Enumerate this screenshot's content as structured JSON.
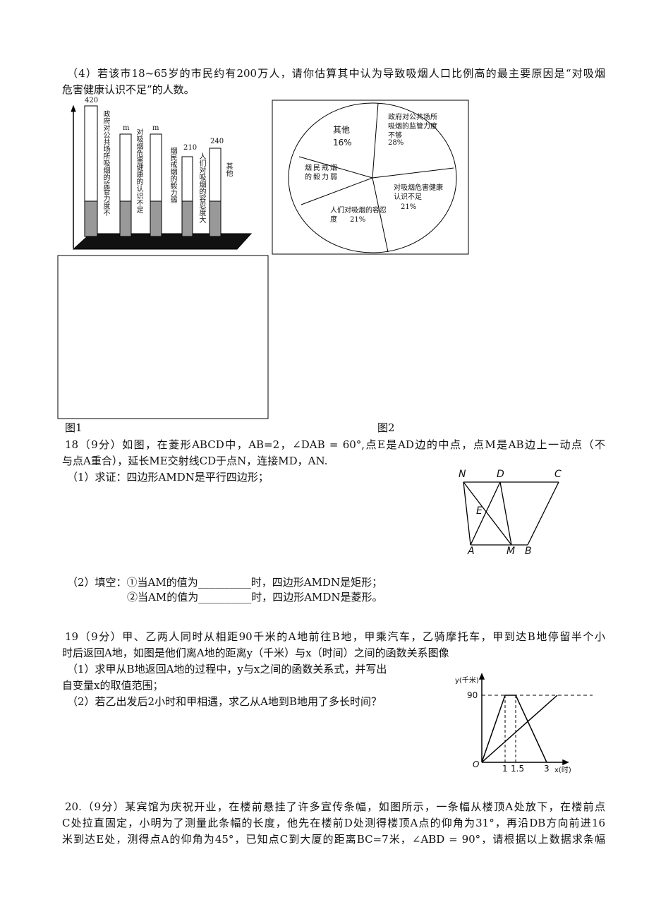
{
  "question17_part4": {
    "lines": [
      "（4）若该市18~65岁的市民约有200万人，请你估算其中认为导致吸烟人口比例高的最主要原因是“对吸烟",
      "危害健康认识不足”的人数。"
    ]
  },
  "figure1": {
    "values": [
      "420",
      "m",
      "m",
      "210",
      "240"
    ],
    "categories": [
      "政府对公共场所吸烟的监管力度不",
      "对吸烟危害健康的认识不足",
      "烟民戒烟的毅力弱",
      "人们对吸烟的容忍度大",
      "其他"
    ],
    "caption": "图1"
  },
  "figure2": {
    "slices": [
      {
        "label": "其他",
        "percent": "16%"
      },
      {
        "label": "政府对公共场所吸烟的监管力度不够",
        "percent": "28%"
      },
      {
        "label": "烟民戒烟的毅力弱"
      },
      {
        "label": "对吸烟危害健康认识不足",
        "percent": "21%"
      },
      {
        "label": "人们对吸烟的容忍度",
        "percent": "21%"
      }
    ],
    "caption": "图2"
  },
  "question18": {
    "lines": [
      "18（9分）如图，在菱形ABCD中，AB=2，∠DAB = 60°,点E是AD边的中点，点M是AB边上一动点（不",
      "与点A重合），延长ME交射线CD于点N，连接MD，AN.",
      "（1）求证：四边形AMDN是平行四边形；",
      "（2）填空：①当AM的值为__________时，四边形AMDN是矩形；",
      "②当AM的值为__________时，四边形AMDN是菱形。"
    ],
    "figure_points": [
      "N",
      "D",
      "C",
      "E",
      "A",
      "M",
      "B"
    ]
  },
  "question19": {
    "lines": [
      "19（9分）甲、乙两人同时从相距90千米的A地前往B地，甲乘汽车，乙骑摩托车，甲到达B地停留半个小",
      "时后返回A地，如图是他们离A地的距离y（千米）与x（时间）之间的函数关系图像",
      "（1）求甲从B地返回A地的过程中，y与x之间的函数关系式，并写出",
      "自变量x的取值范围；",
      "（2）若乙出发后2小时和甲相遇，求乙从A地到B地用了多长时间？"
    ],
    "graph_labels": [
      "y(千米)",
      "90",
      "O",
      "1",
      "1.5",
      "3",
      "x(时)"
    ]
  },
  "question20": {
    "lines": [
      "20.（9分）某宾馆为庆祝开业，在楼前悬挂了许多宣传条幅，如图所示，一条幅从楼顶A处放下，在楼前点",
      "C处拉直固定，小明为了测量此条幅的长度，他先在楼前D处测得楼顶A点的仰角为31°，再沿DB方向前进16",
      "米到达E处，测得点A的仰角为45°，已知点C到大厦的距离BC=7米，∠ABD = 90°，请根据以上数据求条幅"
    ]
  }
}
